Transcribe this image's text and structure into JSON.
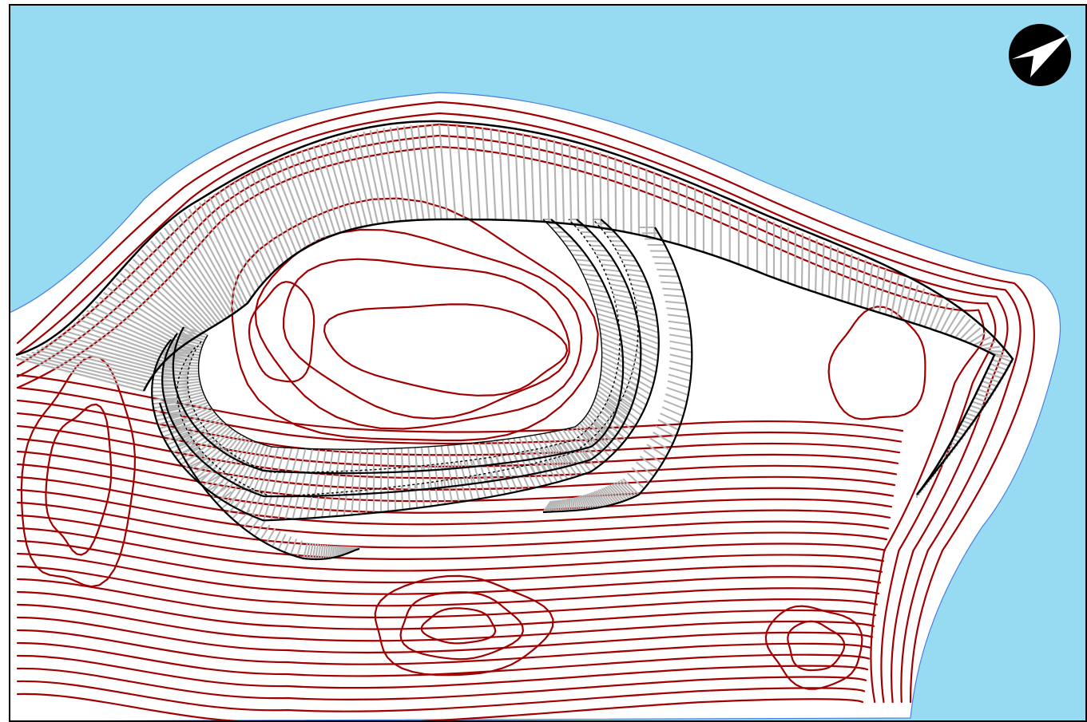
{
  "map": {
    "colors": {
      "water": "#97dbf2",
      "shoreline": "#4a7fe0",
      "contour": "#a00000",
      "earthwork_outline": "#000000",
      "hachure": "#b4b4b4",
      "land": "#ffffff",
      "frame": "#000000"
    },
    "north_arrow": {
      "icon": "north-arrow-icon",
      "fill": "#000000",
      "pointer_fill": "#ffffff"
    }
  }
}
